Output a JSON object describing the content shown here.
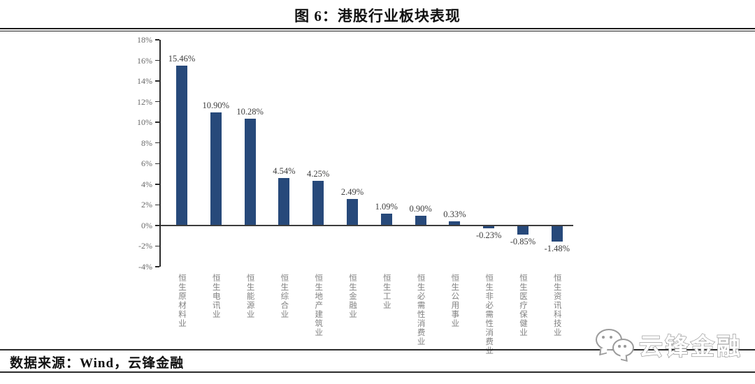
{
  "title": "图 6：港股行业板块表现",
  "source_note": "数据来源：Wind，云锋金融",
  "watermark": {
    "brand": "云锋金融",
    "icon": "chat-bubbles-icon"
  },
  "colors": {
    "bar": "#27497A",
    "axis": "#2b2b2b",
    "zero_line": "#3c3c3c",
    "tick_label": "#6a6a6a",
    "value_label": "#3d3d3d",
    "category_label": "#828282"
  },
  "chart_data": {
    "type": "bar",
    "title": "图 6：港股行业板块表现",
    "xlabel": "",
    "ylabel": "",
    "categories": [
      "恒生原材料业",
      "恒生电讯业",
      "恒生能源业",
      "恒生综合业",
      "恒生地产建筑业",
      "恒生金融业",
      "恒生工业",
      "恒生必需性消费业",
      "恒生公用事业",
      "恒生非必需性消费业",
      "恒生医疗保健业",
      "恒生资讯科技业"
    ],
    "values": [
      15.46,
      10.9,
      10.28,
      4.54,
      4.25,
      2.49,
      1.09,
      0.9,
      0.33,
      -0.23,
      -0.85,
      -1.48
    ],
    "value_labels": [
      "15.46%",
      "10.90%",
      "10.28%",
      "4.54%",
      "4.25%",
      "2.49%",
      "1.09%",
      "0.90%",
      "0.33%",
      "-0.23%",
      "-0.85%",
      "-1.48%"
    ],
    "ylim": [
      -4,
      18
    ],
    "ytick_step": 2,
    "ytick_suffix": "%",
    "grid": false,
    "legend": null,
    "bar_color": "#27497A"
  }
}
